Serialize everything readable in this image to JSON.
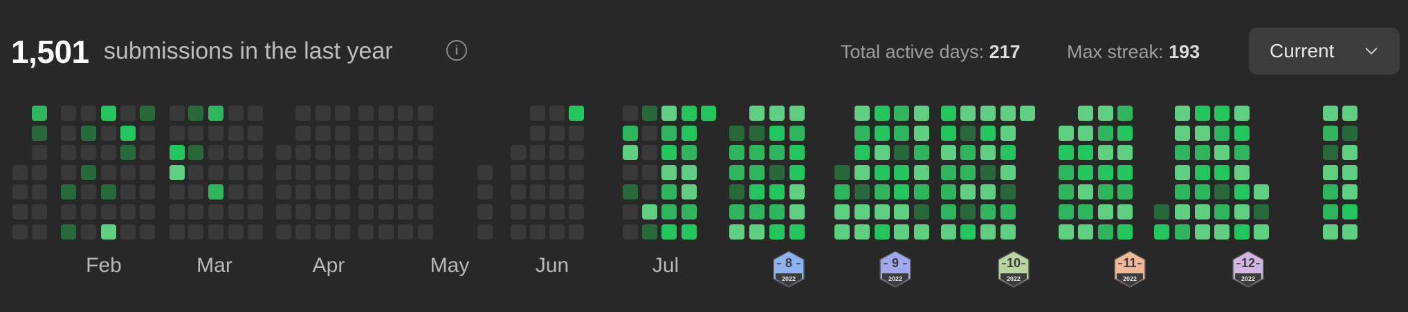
{
  "header": {
    "submissions_count": "1,501",
    "submissions_label": "submissions in the last year",
    "info_icon": "info-icon",
    "active_days_label": "Total active days:",
    "active_days_value": "217",
    "max_streak_label": "Max streak:",
    "max_streak_value": "193",
    "dropdown_label": "Current",
    "dropdown_icon": "chevron-down-icon"
  },
  "months": [
    "Feb",
    "Mar",
    "Apr",
    "May",
    "Jun",
    "Jul"
  ],
  "badges": [
    {
      "number": "8",
      "year": "2022",
      "color": "#8fb2f0"
    },
    {
      "number": "9",
      "year": "2022",
      "color": "#a2a8ee"
    },
    {
      "number": "10",
      "year": "2022",
      "color": "#b9d4a0"
    },
    {
      "number": "11",
      "year": "2022",
      "color": "#f0b896"
    },
    {
      "number": "12",
      "year": "2022",
      "color": "#d3b7e2"
    }
  ],
  "legend_colors": {
    "0": "#393939",
    "1": "#27693b",
    "2": "#2fb55d",
    "3": "#5fcf82",
    "4": "#22c55e"
  },
  "heatmap_weeks": [
    [
      0,
      0,
      0,
      0
    ],
    [
      2,
      1,
      0,
      0,
      0,
      0,
      0
    ],
    [
      0,
      0,
      0,
      0,
      1,
      0,
      1
    ],
    [
      0,
      1,
      0,
      1,
      0,
      0,
      0
    ],
    [
      4,
      0,
      0,
      0,
      1,
      0,
      3
    ],
    [
      0,
      4,
      1,
      0,
      0,
      0,
      0
    ],
    [
      1,
      0,
      0,
      0,
      0,
      0,
      0
    ],
    [
      0,
      0,
      4,
      3,
      0,
      0,
      0
    ],
    [
      1,
      0,
      1,
      0,
      0,
      0,
      0
    ],
    [
      2,
      0,
      0,
      0,
      2,
      0,
      0
    ],
    [
      0,
      0,
      0,
      0,
      0,
      0,
      0
    ],
    [
      0,
      0,
      0,
      0,
      0,
      0,
      0
    ],
    [
      0,
      0,
      0,
      0,
      0
    ],
    [
      0,
      0,
      0,
      0,
      0,
      0,
      0
    ],
    [
      0,
      0,
      0,
      0,
      0,
      0,
      0
    ],
    [
      0,
      0,
      0,
      0,
      0,
      0,
      0
    ],
    [
      0,
      0,
      0,
      0,
      0,
      0,
      0
    ],
    [
      0,
      0,
      0,
      0,
      0,
      0,
      0
    ],
    [
      0,
      0,
      0,
      0,
      0,
      0,
      0
    ],
    [
      0,
      0,
      0,
      0,
      0,
      0,
      0
    ],
    [
      0,
      0,
      0,
      0
    ],
    [
      0,
      0,
      0,
      0,
      0
    ],
    [
      0,
      0,
      0,
      0,
      0,
      0,
      0
    ],
    [
      0,
      0,
      0,
      0,
      0,
      0,
      0
    ],
    [
      4,
      0,
      0,
      0,
      0,
      0,
      0
    ],
    [
      0,
      2,
      3,
      0,
      1,
      0,
      0
    ],
    [
      1,
      0,
      0,
      0,
      0,
      3,
      1
    ],
    [
      3,
      2,
      4,
      3,
      2,
      2,
      4
    ],
    [
      4,
      4,
      2,
      3,
      3,
      2,
      4
    ],
    [
      4
    ],
    [
      1,
      2,
      2,
      1,
      2,
      3
    ],
    [
      3,
      1,
      2,
      2,
      4,
      2,
      3
    ],
    [
      3,
      4,
      2,
      1,
      4,
      2,
      4
    ],
    [
      3,
      2,
      4,
      4,
      3,
      3,
      4
    ],
    [
      1,
      2,
      3,
      3
    ],
    [
      3,
      2,
      4,
      3,
      1,
      3,
      3
    ],
    [
      4,
      4,
      3,
      4,
      2,
      3,
      4
    ],
    [
      2,
      2,
      1,
      4,
      4,
      3,
      3
    ],
    [
      3,
      3,
      2,
      3,
      2,
      1,
      3
    ],
    [
      4,
      4,
      3,
      2,
      2,
      2,
      3
    ],
    [
      3,
      1,
      2,
      2,
      3,
      1,
      4
    ],
    [
      3,
      4,
      3,
      1,
      3,
      2,
      3
    ],
    [
      3,
      3,
      4,
      3,
      1,
      2,
      3
    ],
    [
      3
    ],
    [
      3,
      4,
      2,
      2,
      2,
      3
    ],
    [
      3,
      3,
      4,
      4,
      3,
      2,
      3
    ],
    [
      3,
      2,
      3,
      4,
      2,
      3,
      2
    ],
    [
      2,
      4,
      3,
      4,
      2,
      3,
      4
    ],
    [
      1,
      4
    ],
    [
      3,
      3,
      2,
      3,
      2,
      3,
      2
    ],
    [
      4,
      3,
      2,
      4,
      2,
      3,
      3
    ],
    [
      4,
      2,
      3,
      4,
      1,
      2,
      3
    ],
    [
      3,
      4,
      2,
      3,
      4,
      3,
      4
    ],
    [
      3,
      1,
      3
    ],
    [
      3,
      2,
      1,
      3,
      2,
      2,
      3
    ],
    [
      3,
      1,
      3,
      3,
      3,
      4,
      3
    ]
  ]
}
